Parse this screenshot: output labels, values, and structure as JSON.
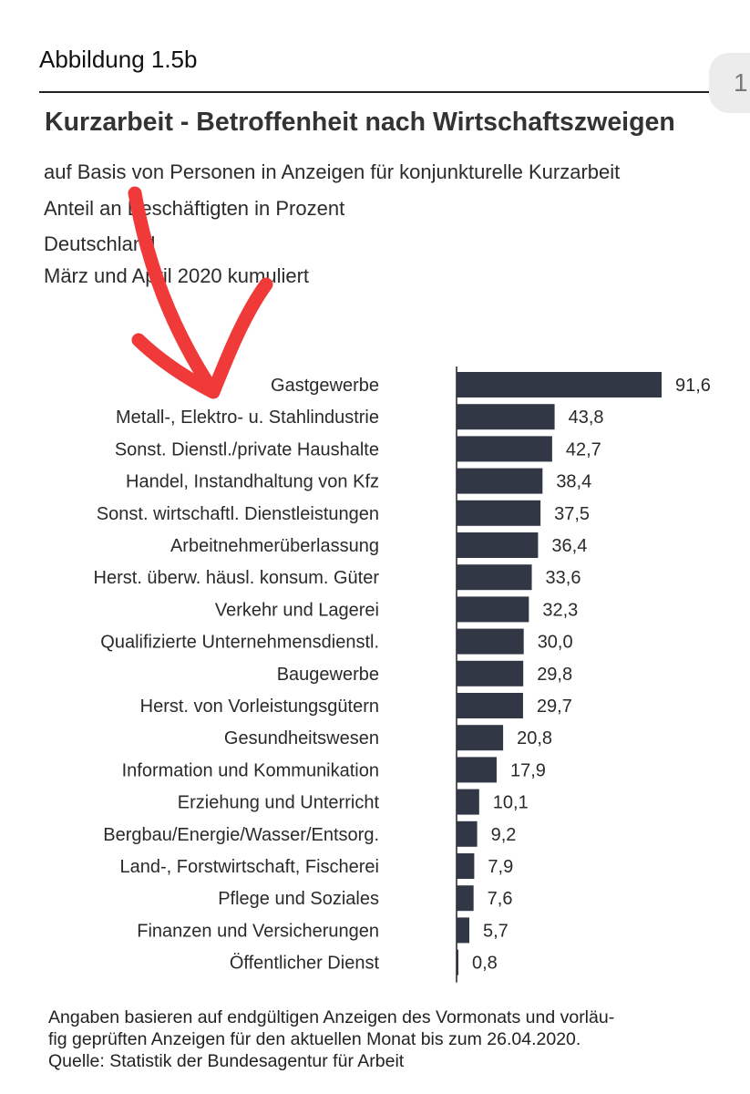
{
  "figure_label": "Abbildung 1.5b",
  "page_tab": "1",
  "title": "Kurzarbeit - Betroffenheit nach Wirtschaftszweigen",
  "subtitles": [
    "auf Basis von Personen in Anzeigen für konjunkturelle Kurzarbeit",
    "Anteil an Beschäftigten in Prozent",
    "Deutschland",
    "März und April 2020 kumuliert"
  ],
  "chart_data": {
    "type": "bar",
    "orientation": "horizontal",
    "title": "Kurzarbeit - Betroffenheit nach Wirtschaftszweigen",
    "xlabel": "",
    "ylabel": "",
    "xlim": [
      0,
      100
    ],
    "grid": false,
    "categories": [
      "Gastgewerbe",
      "Metall-, Elektro- u. Stahlindustrie",
      "Sonst. Dienstl./private Haushalte",
      "Handel, Instandhaltung von Kfz",
      "Sonst. wirtschaftl. Dienstleistungen",
      "Arbeitnehmerüberlassung",
      "Herst. überw. häusl. konsum. Güter",
      "Verkehr und Lagerei",
      "Qualifizierte Unternehmensdienstl.",
      "Baugewerbe",
      "Herst. von Vorleistungsgütern",
      "Gesundheitswesen",
      "Information und Kommunikation",
      "Erziehung und Unterricht",
      "Bergbau/Energie/Wasser/Entsorg.",
      "Land-, Forstwirtschaft, Fischerei",
      "Pflege und Soziales",
      "Finanzen und Versicherungen",
      "Öffentlicher Dienst"
    ],
    "values": [
      91.6,
      43.8,
      42.7,
      38.4,
      37.5,
      36.4,
      33.6,
      32.3,
      30.0,
      29.8,
      29.7,
      20.8,
      17.9,
      10.1,
      9.2,
      7.9,
      7.6,
      5.7,
      0.8
    ],
    "value_labels": [
      "91,6",
      "43,8",
      "42,7",
      "38,4",
      "37,5",
      "36,4",
      "33,6",
      "32,3",
      "30,0",
      "29,8",
      "29,7",
      "20,8",
      "17,9",
      "10,1",
      "9,2",
      "7,9",
      "7,6",
      "5,7",
      "0,8"
    ],
    "bar_color": "#323746"
  },
  "footnote": [
    "Angaben basieren auf endgültigen Anzeigen des Vormonats und vorläu-",
    "fig geprüften Anzeigen für den aktuellen Monat bis zum 26.04.2020.",
    "Quelle: Statistik der Bundesagentur für Arbeit"
  ],
  "colors": {
    "bar": "#323746",
    "annotation_arrow": "#f03a3a"
  }
}
